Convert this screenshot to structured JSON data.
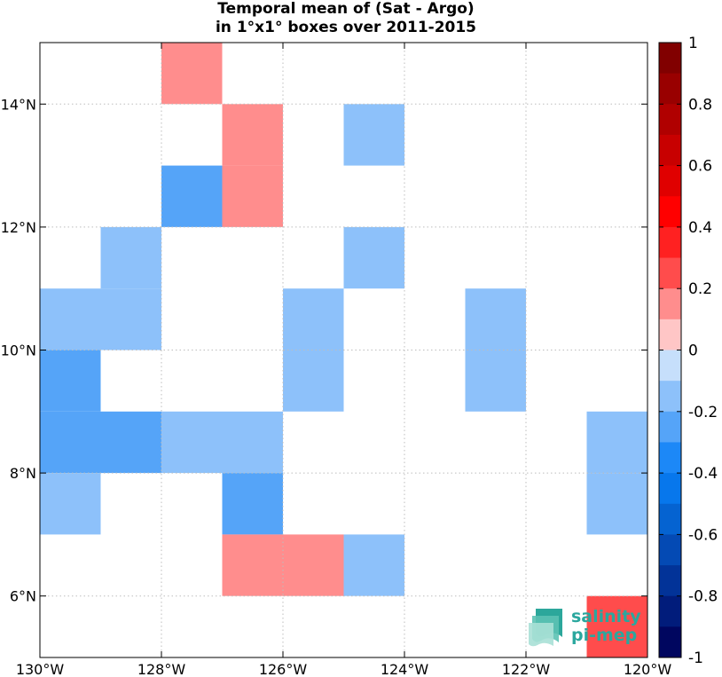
{
  "chart_data": {
    "type": "heatmap",
    "title": [
      "Temporal mean of (Sat - Argo)",
      "in 1°x1° boxes over 2011-2015"
    ],
    "x_ticks": [
      "130°W",
      "128°W",
      "126°W",
      "124°W",
      "122°W",
      "120°W"
    ],
    "y_ticks": [
      "6°N",
      "8°N",
      "10°N",
      "12°N",
      "14°N"
    ],
    "xlim": [
      -130,
      -120
    ],
    "ylim": [
      5,
      15
    ],
    "grid": true,
    "colorbar": {
      "range": [
        -1,
        1
      ],
      "step": 0.1,
      "tick_labels": [
        "1",
        "0.8",
        "0.6",
        "0.4",
        "0.2",
        "0",
        "-0.2",
        "-0.4",
        "-0.6",
        "-0.8",
        "-1"
      ],
      "colors": [
        "#810000",
        "#990000",
        "#b00000",
        "#c80000",
        "#e00000",
        "#ff0000",
        "#ff2121",
        "#ff4c4c",
        "#ff8d8d",
        "#ffc6c6",
        "#c6dffb",
        "#8dc1fa",
        "#55a4f8",
        "#1c88f7",
        "#0777ec",
        "#0563d1",
        "#044ab4",
        "#023398",
        "#011c7b",
        "#00065f"
      ]
    },
    "cells": [
      {
        "lon": -128,
        "lat": 14,
        "value": 0.15
      },
      {
        "lon": -127,
        "lat": 13,
        "value": 0.15
      },
      {
        "lon": -127,
        "lat": 12,
        "value": 0.15
      },
      {
        "lon": -128,
        "lat": 12,
        "value": -0.25
      },
      {
        "lon": -125,
        "lat": 13,
        "value": -0.15
      },
      {
        "lon": -129,
        "lat": 11,
        "value": -0.15
      },
      {
        "lon": -125,
        "lat": 11,
        "value": -0.15
      },
      {
        "lon": -130,
        "lat": 10,
        "value": -0.15
      },
      {
        "lon": -129,
        "lat": 10,
        "value": -0.15
      },
      {
        "lon": -126,
        "lat": 10,
        "value": -0.15
      },
      {
        "lon": -123,
        "lat": 10,
        "value": -0.15
      },
      {
        "lon": -130,
        "lat": 9,
        "value": -0.25
      },
      {
        "lon": -126,
        "lat": 9,
        "value": -0.15
      },
      {
        "lon": -123,
        "lat": 9,
        "value": -0.15
      },
      {
        "lon": -130,
        "lat": 8,
        "value": -0.25
      },
      {
        "lon": -129,
        "lat": 8,
        "value": -0.25
      },
      {
        "lon": -128,
        "lat": 8,
        "value": -0.15
      },
      {
        "lon": -127,
        "lat": 8,
        "value": -0.15
      },
      {
        "lon": -121,
        "lat": 8,
        "value": -0.15
      },
      {
        "lon": -130,
        "lat": 7,
        "value": -0.15
      },
      {
        "lon": -127,
        "lat": 7,
        "value": -0.25
      },
      {
        "lon": -121,
        "lat": 7,
        "value": -0.15
      },
      {
        "lon": -127,
        "lat": 6,
        "value": 0.15
      },
      {
        "lon": -126,
        "lat": 6,
        "value": 0.15
      },
      {
        "lon": -125,
        "lat": 6,
        "value": -0.15
      },
      {
        "lon": -121,
        "lat": 5,
        "value": 0.25
      }
    ]
  },
  "logo": {
    "line1": "salinity",
    "line2": "pi-mep"
  }
}
